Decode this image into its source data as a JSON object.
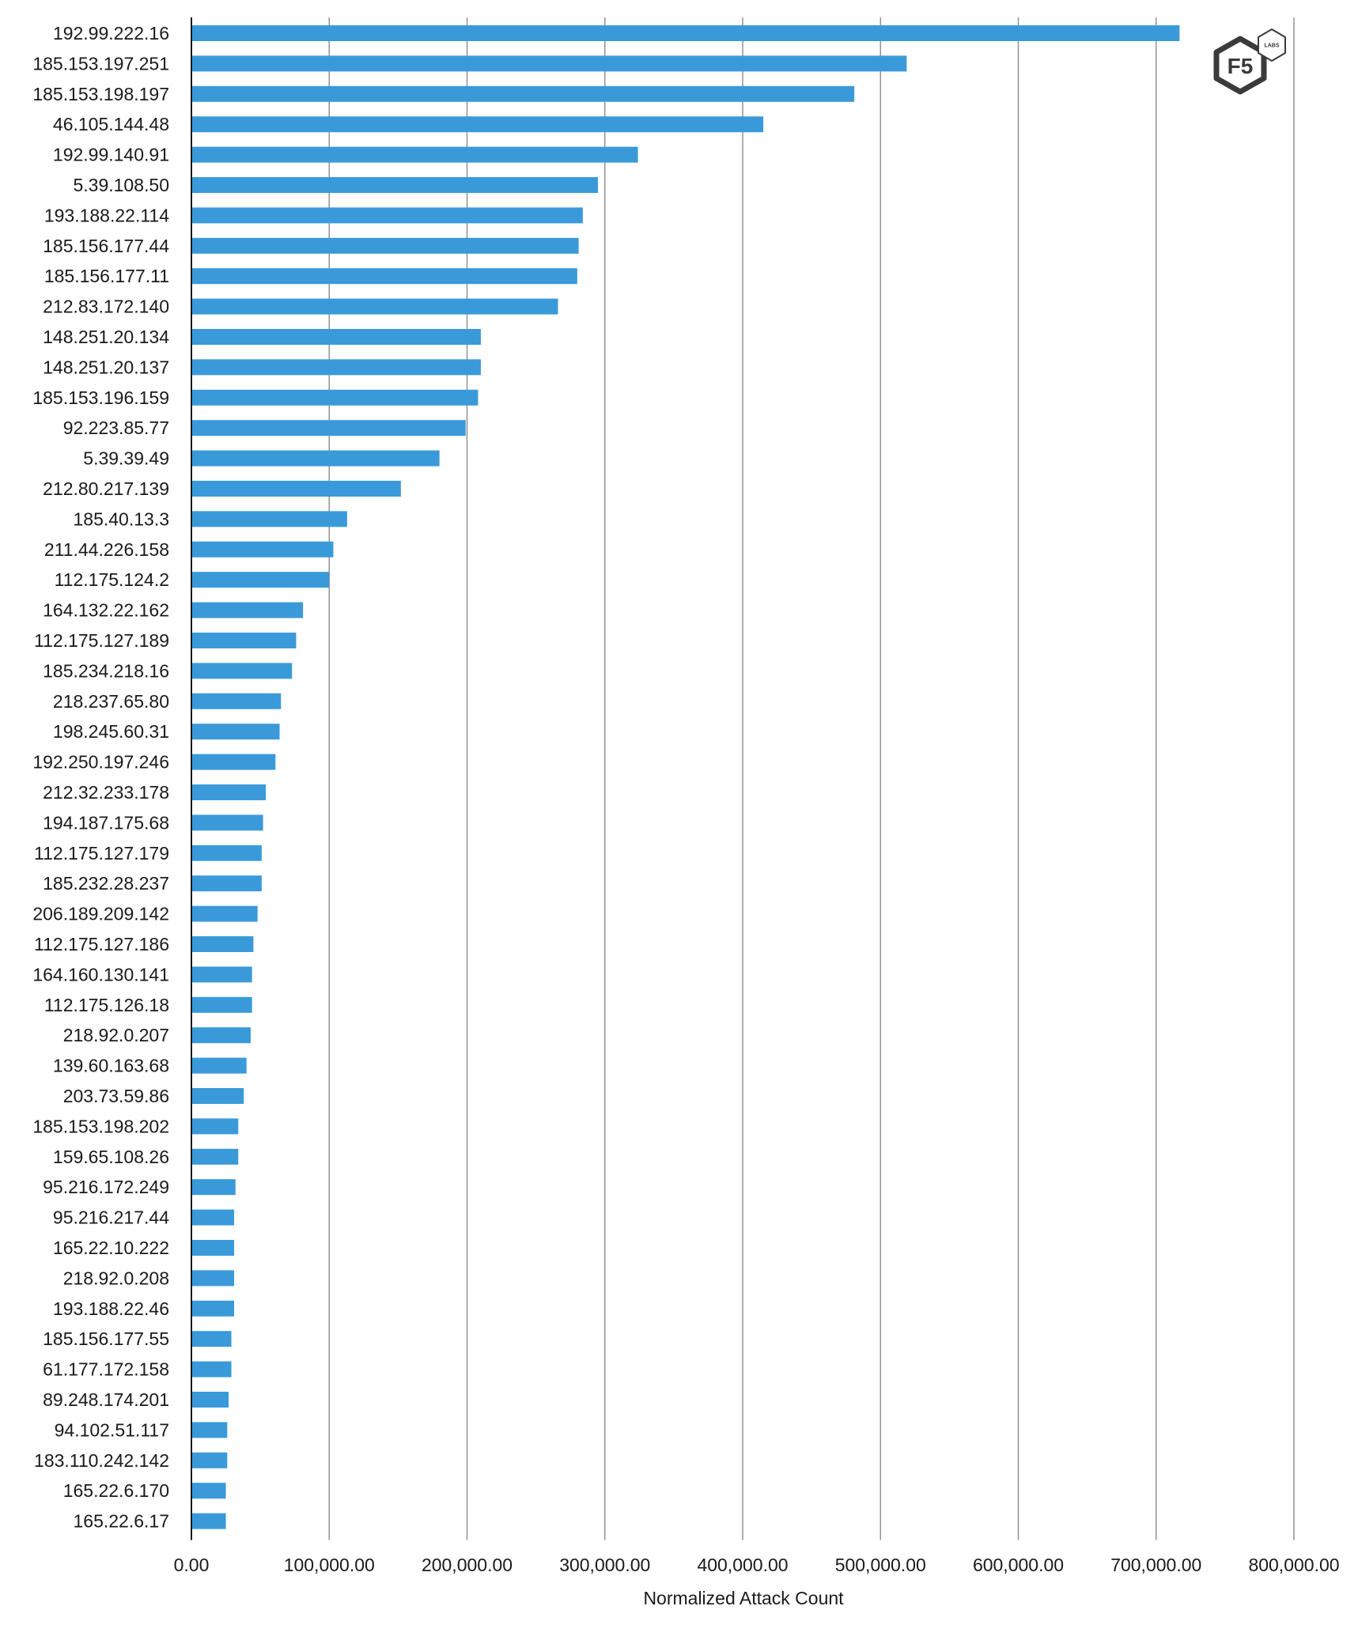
{
  "chart_data": {
    "type": "bar",
    "orientation": "horizontal",
    "title": "",
    "xlabel": "Normalized Attack Count",
    "ylabel": "",
    "xlim": [
      0,
      800000
    ],
    "x_ticks": [
      "0.00",
      "100,000.00",
      "200,000.00",
      "300,000.00",
      "400,000.00",
      "500,000.00",
      "600,000.00",
      "700,000.00",
      "800,000.00"
    ],
    "grid": "vertical",
    "bar_color": "#3a9ad9",
    "categories": [
      "192.99.222.16",
      "185.153.197.251",
      "185.153.198.197",
      "46.105.144.48",
      "192.99.140.91",
      "5.39.108.50",
      "193.188.22.114",
      "185.156.177.44",
      "185.156.177.11",
      "212.83.172.140",
      "148.251.20.134",
      "148.251.20.137",
      "185.153.196.159",
      "92.223.85.77",
      "5.39.39.49",
      "212.80.217.139",
      "185.40.13.3",
      "211.44.226.158",
      "112.175.124.2",
      "164.132.22.162",
      "112.175.127.189",
      "185.234.218.16",
      "218.237.65.80",
      "198.245.60.31",
      "192.250.197.246",
      "212.32.233.178",
      "194.187.175.68",
      "112.175.127.179",
      "185.232.28.237",
      "206.189.209.142",
      "112.175.127.186",
      "164.160.130.141",
      "112.175.126.18",
      "218.92.0.207",
      "139.60.163.68",
      "203.73.59.86",
      "185.153.198.202",
      "159.65.108.26",
      "95.216.172.249",
      "95.216.217.44",
      "165.22.10.222",
      "218.92.0.208",
      "193.188.22.46",
      "185.156.177.55",
      "61.177.172.158",
      "89.248.174.201",
      "94.102.51.117",
      "183.110.242.142",
      "165.22.6.170",
      "165.22.6.17"
    ],
    "values": [
      717000,
      519000,
      481000,
      415000,
      324000,
      295000,
      284000,
      281000,
      280000,
      266000,
      210000,
      210000,
      208000,
      199000,
      180000,
      152000,
      113000,
      103000,
      100000,
      81000,
      76000,
      73000,
      65000,
      64000,
      61000,
      54000,
      52000,
      51000,
      51000,
      48000,
      45000,
      44000,
      44000,
      43000,
      40000,
      38000,
      34000,
      34000,
      32000,
      31000,
      31000,
      31000,
      31000,
      29000,
      29000,
      27000,
      26000,
      26000,
      25000,
      25000
    ]
  },
  "logo": {
    "main_text": "F5",
    "sub_text": "LABS",
    "color": "#3a3a3a"
  }
}
